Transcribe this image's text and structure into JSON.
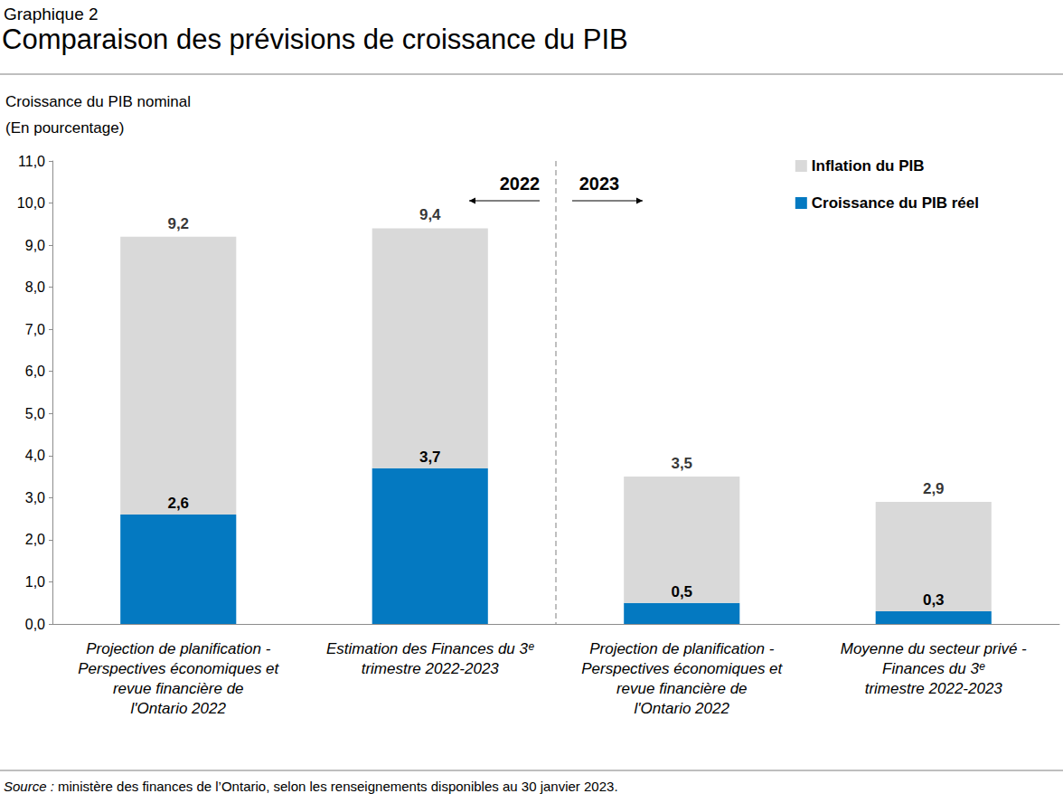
{
  "chart_data": {
    "type": "bar",
    "suptitle": "Graphique 2",
    "title": "Comparaison des prévisions de croissance du PIB",
    "ylabel": [
      "Croissance du PIB nominal",
      "(En pourcentage)"
    ],
    "categories": [
      "Projection de planification -\nPerspectives économiques et\nrevue financière de\nl'Ontario 2022",
      "Estimation des Finances du 3ᵉ\ntrimestre 2022-2023",
      "Projection de planification -\nPerspectives économiques et\nrevue financière de\nl'Ontario 2022",
      "Moyenne du secteur privé -\nFinances du 3ᵉ\ntrimestre 2022-2023"
    ],
    "series": [
      {
        "name": "Croissance du PIB réel",
        "color": "#0479c1",
        "values": [
          2.6,
          3.7,
          0.5,
          0.3
        ],
        "value_labels": [
          "2,6",
          "3,7",
          "0,5",
          "0,3"
        ],
        "data_labels": true
      },
      {
        "name": "Inflation du PIB",
        "color": "#d9d9d9",
        "values": [
          6.6,
          5.7,
          3.0,
          2.6
        ],
        "data_labels": false
      }
    ],
    "totals": [
      9.2,
      9.4,
      3.5,
      2.9
    ],
    "total_labels": [
      "9,2",
      "9,4",
      "3,5",
      "2,9"
    ],
    "stacked": true,
    "legend": "top-right",
    "grid": false,
    "ylim": [
      0,
      11
    ],
    "yticks": [
      {
        "value": 0,
        "label": "0,0"
      },
      {
        "value": 1,
        "label": "1,0"
      },
      {
        "value": 2,
        "label": "2,0"
      },
      {
        "value": 3,
        "label": "3,0"
      },
      {
        "value": 4,
        "label": "4,0"
      },
      {
        "value": 5,
        "label": "5,0"
      },
      {
        "value": 6,
        "label": "6,0"
      },
      {
        "value": 7,
        "label": "7,0"
      },
      {
        "value": 8,
        "label": "8,0"
      },
      {
        "value": 9,
        "label": "9,0"
      },
      {
        "value": 10,
        "label": "10,0"
      },
      {
        "value": 11,
        "label": "11,0"
      }
    ],
    "annotations": [
      {
        "text": "2022"
      },
      {
        "text": "2023"
      }
    ],
    "source": {
      "label": "Source :",
      "text": "ministère des finances de l’Ontario, selon les renseignements disponibles au 30 janvier 2023."
    }
  }
}
